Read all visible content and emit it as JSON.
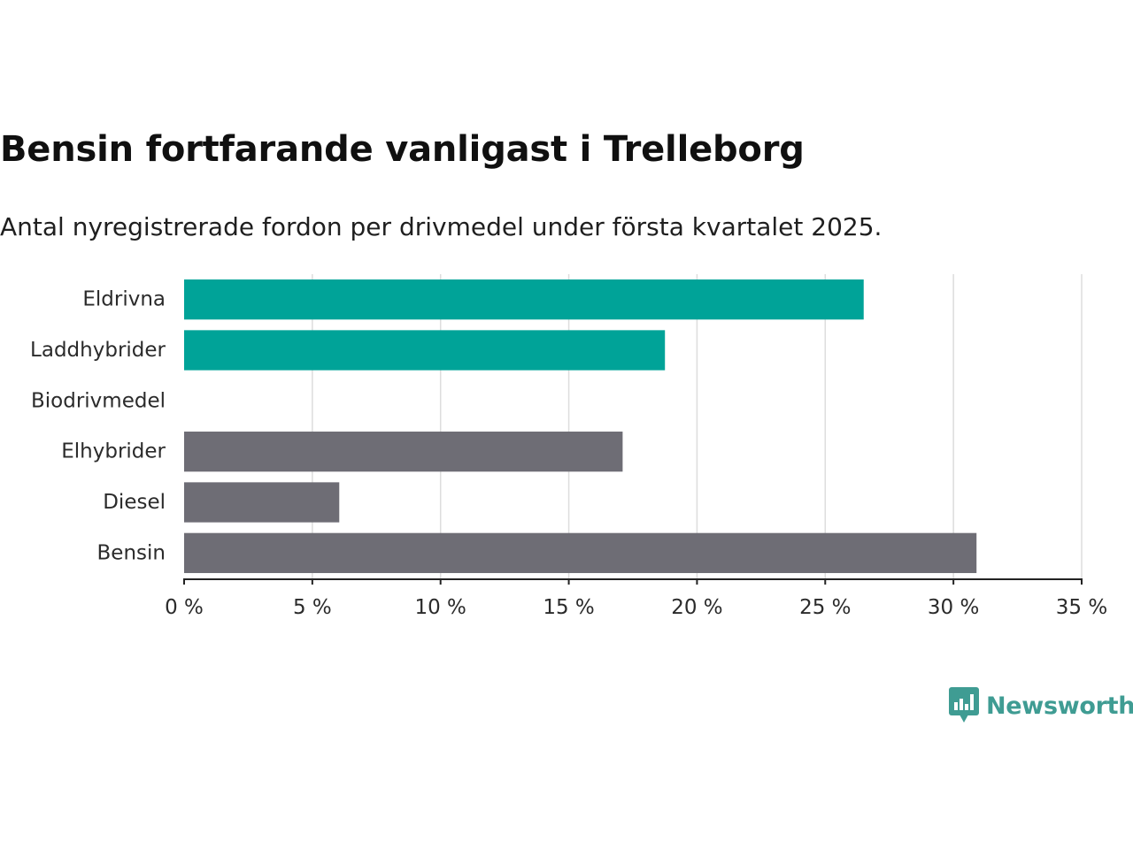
{
  "title": "Bensin fortfarande vanligast i Trelleborg",
  "subtitle": "Antal nyregistrerade fordon per drivmedel under första kvartalet 2025.",
  "brand": {
    "name": "Newsworthy",
    "color": "#3f9c93"
  },
  "colors": {
    "highlight": "#00a398",
    "default": "#6e6d75",
    "grid": "#dddddd",
    "axis": "#222222",
    "text": "#2b2b2b"
  },
  "chart_data": {
    "type": "bar",
    "orientation": "horizontal",
    "title": "Bensin fortfarande vanligast i Trelleborg",
    "subtitle": "Antal nyregistrerade fordon per drivmedel under första kvartalet 2025.",
    "xlabel": "",
    "ylabel": "",
    "categories": [
      "Eldrivna",
      "Laddhybrider",
      "Biodrivmedel",
      "Elhybrider",
      "Diesel",
      "Bensin"
    ],
    "values": [
      26.5,
      18.75,
      0,
      17.1,
      6.05,
      30.9
    ],
    "highlighted": [
      true,
      true,
      true,
      false,
      false,
      false
    ],
    "xlim": [
      0,
      35
    ],
    "xticks": [
      0,
      5,
      10,
      15,
      20,
      25,
      30,
      35
    ],
    "xtick_labels": [
      "0 %",
      "5 %",
      "10 %",
      "15 %",
      "20 %",
      "25 %",
      "30 %",
      "35 %"
    ],
    "grid": true,
    "legend": "none"
  }
}
